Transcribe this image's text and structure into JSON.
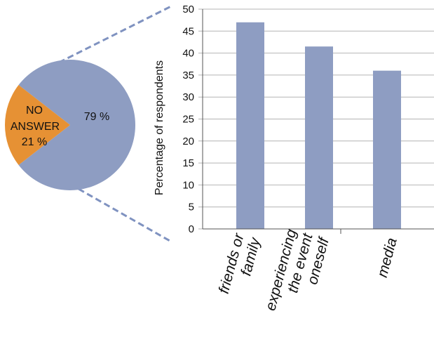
{
  "colors": {
    "answered": "#8e9dc2",
    "no_answer": "#e69134",
    "bar": "#8e9dc2",
    "grid": "#b4b4b4",
    "axis": "#555555",
    "connector": "#7f92c0",
    "text": "#111111"
  },
  "pie": {
    "answered_label": "79  %",
    "no_answer_label_line1": "NO",
    "no_answer_label_line2": "ANSWER",
    "no_answer_label_line3": "21 %"
  },
  "chart_data": [
    {
      "type": "pie",
      "slices": [
        {
          "label": "79  %",
          "value": 79
        },
        {
          "label": "NO ANSWER 21 %",
          "value": 21
        }
      ]
    },
    {
      "type": "bar",
      "categories": [
        [
          "friends or",
          "family"
        ],
        [
          "experiencing",
          "the event",
          "oneself"
        ],
        [
          "media"
        ]
      ],
      "values": [
        47,
        41.5,
        36
      ],
      "ylabel": "Percentage of respondents",
      "ylim": [
        0,
        50
      ],
      "yticks": [
        0,
        5,
        10,
        15,
        20,
        25,
        30,
        35,
        40,
        45,
        50
      ],
      "grid": true
    }
  ]
}
